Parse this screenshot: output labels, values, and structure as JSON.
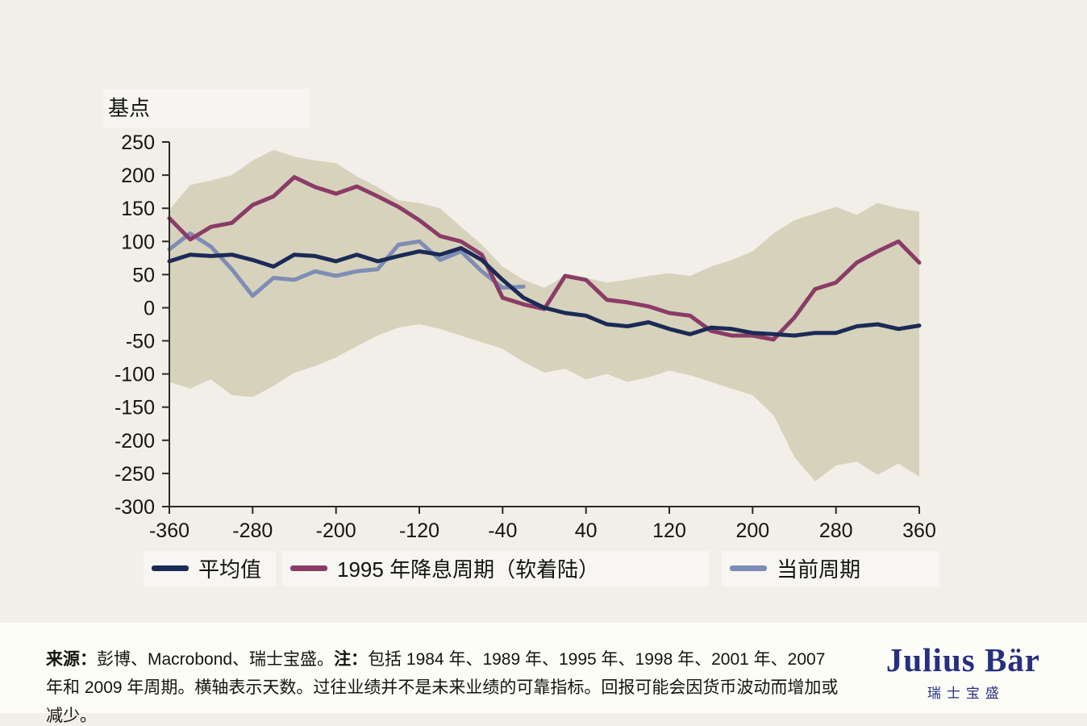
{
  "chart_data": {
    "type": "line",
    "title": "基点",
    "xlabel": "",
    "ylabel": "基点",
    "xlim": [
      -360,
      360
    ],
    "ylim": [
      -300,
      250
    ],
    "grid": false,
    "legend_position": "bottom",
    "x_ticks": [
      -360,
      -280,
      -200,
      -120,
      -40,
      40,
      120,
      200,
      280,
      360
    ],
    "y_ticks": [
      250,
      200,
      150,
      100,
      50,
      0,
      -50,
      -100,
      -150,
      -200,
      -250,
      -300
    ],
    "x": [
      -360,
      -340,
      -320,
      -300,
      -280,
      -260,
      -240,
      -220,
      -200,
      -180,
      -160,
      -140,
      -120,
      -100,
      -80,
      -60,
      -40,
      -20,
      0,
      20,
      40,
      60,
      80,
      100,
      120,
      140,
      160,
      180,
      200,
      220,
      240,
      260,
      280,
      300,
      320,
      340,
      360
    ],
    "band": {
      "color": "#d7d2bc",
      "max": [
        148,
        185,
        192,
        200,
        222,
        238,
        228,
        222,
        218,
        198,
        182,
        162,
        158,
        150,
        122,
        95,
        62,
        42,
        30,
        48,
        45,
        38,
        42,
        48,
        52,
        48,
        62,
        72,
        85,
        112,
        132,
        142,
        152,
        140,
        158,
        150,
        145
      ],
      "min": [
        -112,
        -122,
        -108,
        -132,
        -135,
        -118,
        -98,
        -88,
        -75,
        -58,
        -42,
        -30,
        -25,
        -32,
        -42,
        -52,
        -62,
        -82,
        -98,
        -92,
        -108,
        -100,
        -112,
        -105,
        -95,
        -102,
        -112,
        -122,
        -132,
        -162,
        -225,
        -262,
        -238,
        -232,
        -252,
        -235,
        -255
      ]
    },
    "series": [
      {
        "name": "平均值",
        "color": "#1b2a56",
        "width": 5,
        "y": [
          70,
          80,
          78,
          80,
          72,
          62,
          80,
          78,
          70,
          80,
          70,
          78,
          85,
          80,
          90,
          72,
          42,
          15,
          0,
          -8,
          -12,
          -25,
          -28,
          -22,
          -32,
          -40,
          -30,
          -32,
          -38,
          -40,
          -42,
          -38,
          -38,
          -28,
          -25,
          -32,
          -27
        ]
      },
      {
        "name": "1995 年降息周期（软着陆）",
        "color": "#8a3c66",
        "width": 5,
        "y": [
          135,
          103,
          122,
          128,
          155,
          168,
          197,
          182,
          172,
          183,
          168,
          152,
          132,
          108,
          100,
          80,
          15,
          5,
          -2,
          48,
          42,
          12,
          8,
          2,
          -8,
          -12,
          -35,
          -42,
          -42,
          -48,
          -15,
          28,
          38,
          68,
          85,
          100,
          68
        ]
      },
      {
        "name": "当前周期",
        "color": "#7e8db5",
        "width": 5,
        "y": [
          88,
          112,
          92,
          58,
          18,
          45,
          42,
          55,
          48,
          55,
          58,
          95,
          100,
          72,
          85,
          55,
          30,
          32,
          null,
          null,
          null,
          null,
          null,
          null,
          null,
          null,
          null,
          null,
          null,
          null,
          null,
          null,
          null,
          null,
          null,
          null,
          null
        ]
      }
    ]
  },
  "footer": {
    "source_label": "来源：",
    "source_text": "彭博、Macrobond、瑞士宝盛。",
    "note_label": "注：",
    "note_text": "包括 1984 年、1989 年、1995 年、1998 年、2001 年、2007 年和 2009 年周期。横轴表示天数。过往业绩并不是未来业绩的可靠指标。回报可能会因货币波动而增加或减少。"
  },
  "logo": {
    "name": "Julius Bär",
    "chinese": "瑞士宝盛",
    "color": "#272f80"
  }
}
